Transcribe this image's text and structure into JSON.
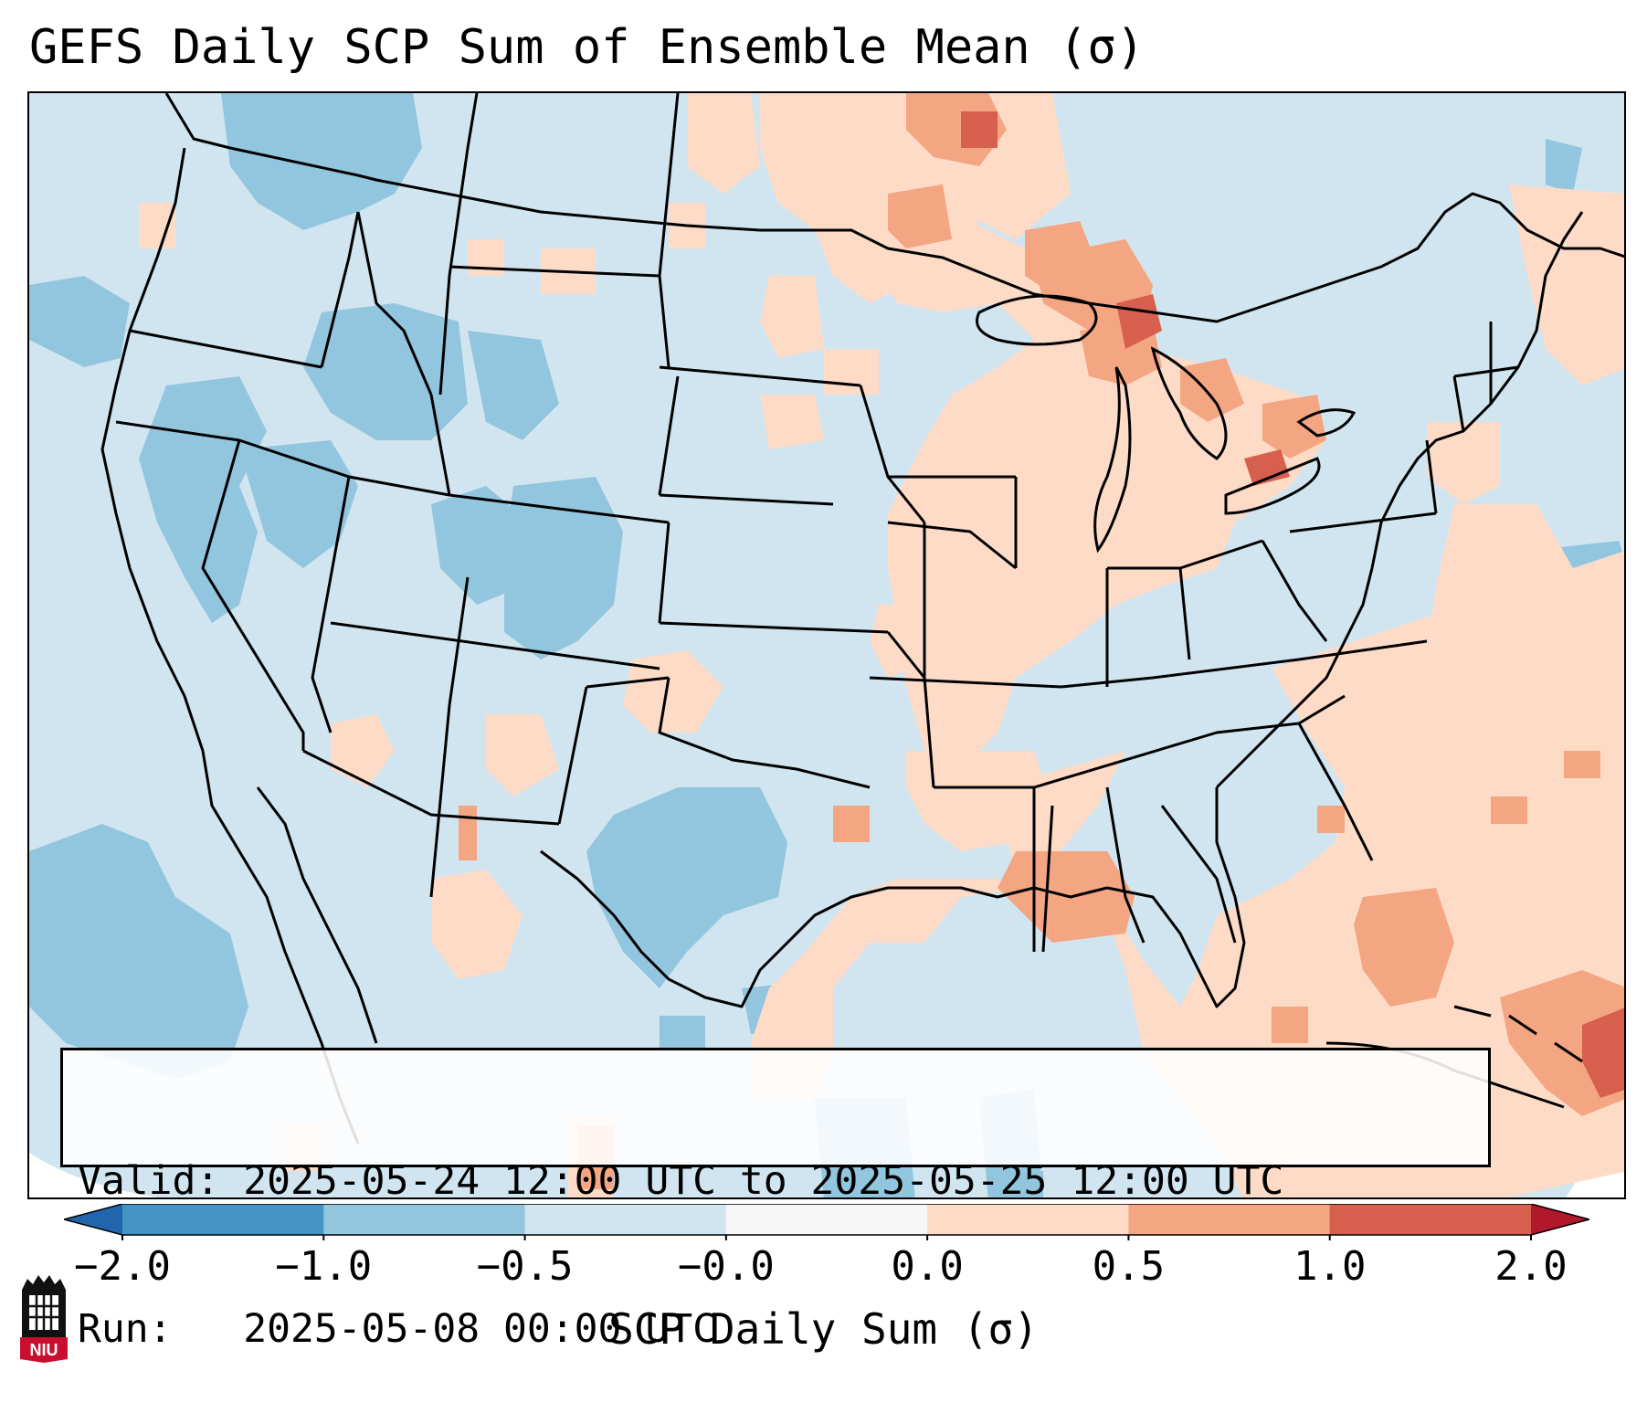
{
  "title": "GEFS Daily SCP Sum of Ensemble Mean (σ)",
  "info": {
    "valid_label": "Valid:",
    "valid_value": "2025-05-24 12:00 UTC to 2025-05-25 12:00 UTC",
    "run_label": "Run:",
    "run_value": "2025-05-08 00:00 UTC"
  },
  "colorbar": {
    "label": "SCP Daily Sum (σ)",
    "ticks": [
      "−2.0",
      "−1.0",
      "−0.5",
      "−0.0",
      "0.0",
      "0.5",
      "1.0",
      "2.0"
    ],
    "bins": [
      {
        "color": "#4393c3"
      },
      {
        "color": "#92c5de"
      },
      {
        "color": "#d1e5f0"
      },
      {
        "color": "#f7f7f7"
      },
      {
        "color": "#fddbc7"
      },
      {
        "color": "#f4a582"
      },
      {
        "color": "#d6604d"
      }
    ],
    "under_color": "#2166ac",
    "over_color": "#b2182b"
  },
  "map": {
    "region": "Contiguous United States",
    "background_color": "#d1e5f0",
    "boundaries": [
      "coastlines",
      "state borders",
      "country borders",
      "lakes"
    ]
  },
  "logo": {
    "text": "NIU",
    "colors": [
      "#c8102e",
      "#000000"
    ]
  }
}
